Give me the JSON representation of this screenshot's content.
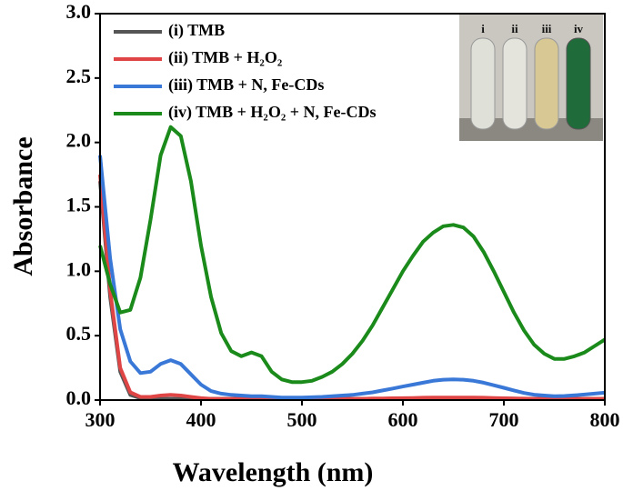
{
  "chart_data": {
    "type": "line",
    "xlabel": "Wavelength (nm)",
    "ylabel": "Absorbance",
    "x": [
      300,
      310,
      320,
      330,
      340,
      350,
      360,
      370,
      380,
      390,
      400,
      410,
      420,
      430,
      440,
      450,
      460,
      470,
      480,
      490,
      500,
      510,
      520,
      530,
      540,
      550,
      560,
      570,
      580,
      590,
      600,
      610,
      620,
      630,
      640,
      650,
      660,
      670,
      680,
      690,
      700,
      710,
      720,
      730,
      740,
      750,
      760,
      770,
      780,
      790,
      800
    ],
    "xlim": [
      300,
      800
    ],
    "xticks": [
      300,
      400,
      500,
      600,
      700,
      800
    ],
    "ylim": [
      0,
      3
    ],
    "yticks": [
      {
        "value": 0,
        "label": "0.0"
      },
      0.5,
      {
        "value": 1,
        "label": "1.0"
      },
      1.5,
      {
        "value": 2,
        "label": "2.0"
      },
      2.5,
      {
        "value": 3,
        "label": "3.0"
      }
    ],
    "series": [
      {
        "name": "(i) TMB",
        "color": "#555555",
        "values": [
          1.7,
          0.8,
          0.22,
          0.04,
          0.015,
          0.01,
          0.01,
          0.01,
          0.01,
          0.01,
          0.01,
          0.01,
          0.01,
          0.01,
          0.01,
          0.01,
          0.01,
          0.01,
          0.01,
          0.01,
          0.01,
          0.01,
          0.01,
          0.01,
          0.01,
          0.01,
          0.01,
          0.01,
          0.01,
          0.012,
          0.012,
          0.013,
          0.014,
          0.015,
          0.015,
          0.015,
          0.015,
          0.015,
          0.014,
          0.013,
          0.012,
          0.011,
          0.01,
          0.01,
          0.01,
          0.01,
          0.01,
          0.01,
          0.01,
          0.01,
          0.01
        ]
      },
      {
        "name": "(ii) TMB + H₂O₂",
        "color": "#e04545",
        "values": [
          1.75,
          0.85,
          0.25,
          0.06,
          0.025,
          0.025,
          0.035,
          0.04,
          0.035,
          0.025,
          0.015,
          0.01,
          0.01,
          0.01,
          0.01,
          0.01,
          0.01,
          0.01,
          0.01,
          0.01,
          0.01,
          0.01,
          0.01,
          0.01,
          0.01,
          0.01,
          0.01,
          0.012,
          0.013,
          0.014,
          0.015,
          0.016,
          0.018,
          0.019,
          0.02,
          0.02,
          0.02,
          0.019,
          0.018,
          0.016,
          0.014,
          0.012,
          0.011,
          0.01,
          0.01,
          0.01,
          0.01,
          0.01,
          0.01,
          0.01,
          0.01
        ]
      },
      {
        "name": "(iii) TMB + N, Fe-CDs",
        "color": "#3a78d8",
        "values": [
          1.9,
          1.1,
          0.55,
          0.3,
          0.21,
          0.22,
          0.28,
          0.31,
          0.28,
          0.2,
          0.12,
          0.07,
          0.05,
          0.04,
          0.035,
          0.03,
          0.03,
          0.025,
          0.02,
          0.02,
          0.02,
          0.022,
          0.025,
          0.03,
          0.035,
          0.04,
          0.05,
          0.06,
          0.075,
          0.09,
          0.105,
          0.12,
          0.135,
          0.15,
          0.158,
          0.16,
          0.158,
          0.15,
          0.135,
          0.115,
          0.095,
          0.075,
          0.055,
          0.042,
          0.035,
          0.03,
          0.032,
          0.037,
          0.043,
          0.05,
          0.057
        ]
      },
      {
        "name": "(iv) TMB + H₂O₂ + N, Fe-CDs",
        "color": "#1a8a1a",
        "values": [
          1.2,
          0.9,
          0.68,
          0.7,
          0.95,
          1.4,
          1.9,
          2.12,
          2.05,
          1.7,
          1.2,
          0.8,
          0.52,
          0.38,
          0.34,
          0.37,
          0.34,
          0.22,
          0.16,
          0.14,
          0.14,
          0.15,
          0.18,
          0.22,
          0.28,
          0.36,
          0.46,
          0.58,
          0.72,
          0.86,
          1.0,
          1.12,
          1.23,
          1.3,
          1.35,
          1.36,
          1.34,
          1.27,
          1.15,
          1.0,
          0.84,
          0.68,
          0.54,
          0.43,
          0.36,
          0.32,
          0.32,
          0.34,
          0.37,
          0.42,
          0.47
        ]
      }
    ],
    "legend": "upper left",
    "inset_labels": [
      "i",
      "ii",
      "iii",
      "iv"
    ]
  }
}
